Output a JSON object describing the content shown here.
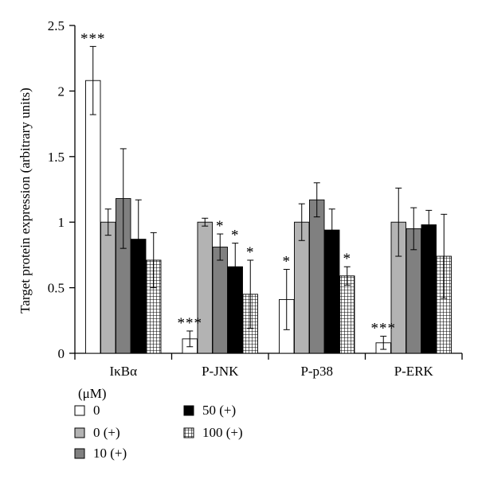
{
  "chart_data": {
    "type": "bar",
    "ylabel": "Target protein expression (arbitrary units)",
    "ylim": [
      0,
      2.5
    ],
    "yticks": [
      "0",
      "0.5",
      "1",
      "1.5",
      "2",
      "2.5"
    ],
    "categories": [
      "IκBα",
      "P-JNK",
      "P-p38",
      "P-ERK"
    ],
    "legend_title": "(μM)",
    "series": [
      {
        "name": "0",
        "fill": "#ffffff",
        "pattern": "none",
        "values": [
          2.08,
          0.11,
          0.41,
          0.08
        ],
        "errors": [
          0.26,
          0.06,
          0.23,
          0.05
        ],
        "sig": [
          "***",
          "***",
          "*",
          "***"
        ]
      },
      {
        "name": "0 (+)",
        "fill": "#b3b3b3",
        "pattern": "none",
        "values": [
          1.0,
          1.0,
          1.0,
          1.0
        ],
        "errors": [
          0.1,
          0.03,
          0.14,
          0.26
        ],
        "sig": [
          "",
          "",
          "",
          ""
        ]
      },
      {
        "name": "10 (+)",
        "fill": "#808080",
        "pattern": "none",
        "values": [
          1.18,
          0.81,
          1.17,
          0.95
        ],
        "errors": [
          0.38,
          0.1,
          0.13,
          0.16
        ],
        "sig": [
          "",
          "*",
          "",
          ""
        ]
      },
      {
        "name": "50 (+)",
        "fill": "#000000",
        "pattern": "none",
        "values": [
          0.87,
          0.66,
          0.94,
          0.98
        ],
        "errors": [
          0.3,
          0.18,
          0.16,
          0.11
        ],
        "sig": [
          "",
          "*",
          "",
          ""
        ]
      },
      {
        "name": "100 (+)",
        "fill": "#ffffff",
        "pattern": "grid",
        "values": [
          0.71,
          0.45,
          0.59,
          0.74
        ],
        "errors": [
          0.21,
          0.26,
          0.07,
          0.32
        ],
        "sig": [
          "",
          "*",
          "*",
          ""
        ]
      }
    ],
    "grid": false,
    "legend_position": "bottom-left"
  }
}
